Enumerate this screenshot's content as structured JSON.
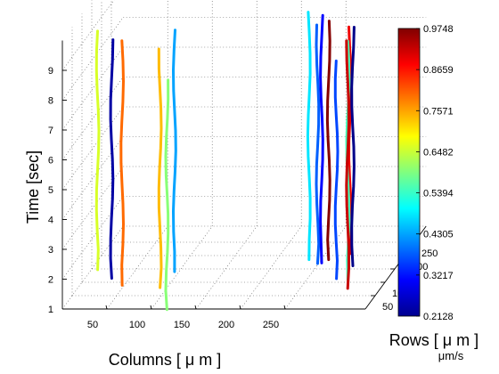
{
  "chart_data": {
    "type": "line3d",
    "xlabel": "Columns [ μ m ]",
    "ylabel": "Rows [ μ m ]",
    "zlabel": "Time [sec]",
    "colorbar_label": "μm/s",
    "xlim": [
      0,
      300
    ],
    "ylim": [
      0,
      300
    ],
    "zlim": [
      1,
      9.6
    ],
    "x_ticks": [
      "50",
      "100",
      "150",
      "200",
      "250"
    ],
    "y_ticks": [
      "50",
      "100",
      "150",
      "200",
      "250"
    ],
    "z_ticks": [
      "1",
      "2",
      "3",
      "4",
      "5",
      "6",
      "7",
      "8",
      "9"
    ],
    "colorbar_ticks": [
      "0.9748",
      "0.8659",
      "0.7571",
      "0.6482",
      "0.5394",
      "0.4305",
      "0.3217",
      "0.2128"
    ],
    "colormap": "jet",
    "grid": true,
    "series": [
      {
        "x": 22,
        "y": 80,
        "z": [
          1.6,
          9.6
        ],
        "speed": 0.66
      },
      {
        "x": 40,
        "y": 70,
        "z": [
          1.4,
          9.4
        ],
        "speed": 0.24
      },
      {
        "x": 55,
        "y": 55,
        "z": [
          1.3,
          9.5
        ],
        "speed": 0.8
      },
      {
        "x": 92,
        "y": 80,
        "z": [
          1.0,
          9.0
        ],
        "speed": 0.74
      },
      {
        "x": 105,
        "y": 95,
        "z": [
          1.4,
          9.5
        ],
        "speed": 0.43
      },
      {
        "x": 113,
        "y": 20,
        "z": [
          0.8,
          8.5
        ],
        "speed": 0.6
      },
      {
        "x": 246,
        "y": 140,
        "z": [
          1.4,
          9.7
        ],
        "speed": 0.48
      },
      {
        "x": 249,
        "y": 170,
        "z": [
          1.0,
          9.0
        ],
        "speed": 0.38
      },
      {
        "x": 258,
        "y": 150,
        "z": [
          1.2,
          9.5
        ],
        "speed": 0.31
      },
      {
        "x": 268,
        "y": 140,
        "z": [
          1.4,
          9.4
        ],
        "speed": 0.97
      },
      {
        "x": 292,
        "y": 140,
        "z": [
          1.6,
          9.2
        ],
        "speed": 0.89
      },
      {
        "x": 290,
        "y": 80,
        "z": [
          1.3,
          8.6
        ],
        "speed": 0.36
      },
      {
        "x": 315,
        "y": 50,
        "z": [
          2.0,
          10.0
        ],
        "speed": 0.22
      },
      {
        "x": 316,
        "y": 20,
        "z": [
          1.8,
          9.8
        ],
        "speed": 0.55
      },
      {
        "x": 318,
        "y": 10,
        "z": [
          1.6,
          9.9
        ],
        "speed": 0.92
      }
    ]
  }
}
